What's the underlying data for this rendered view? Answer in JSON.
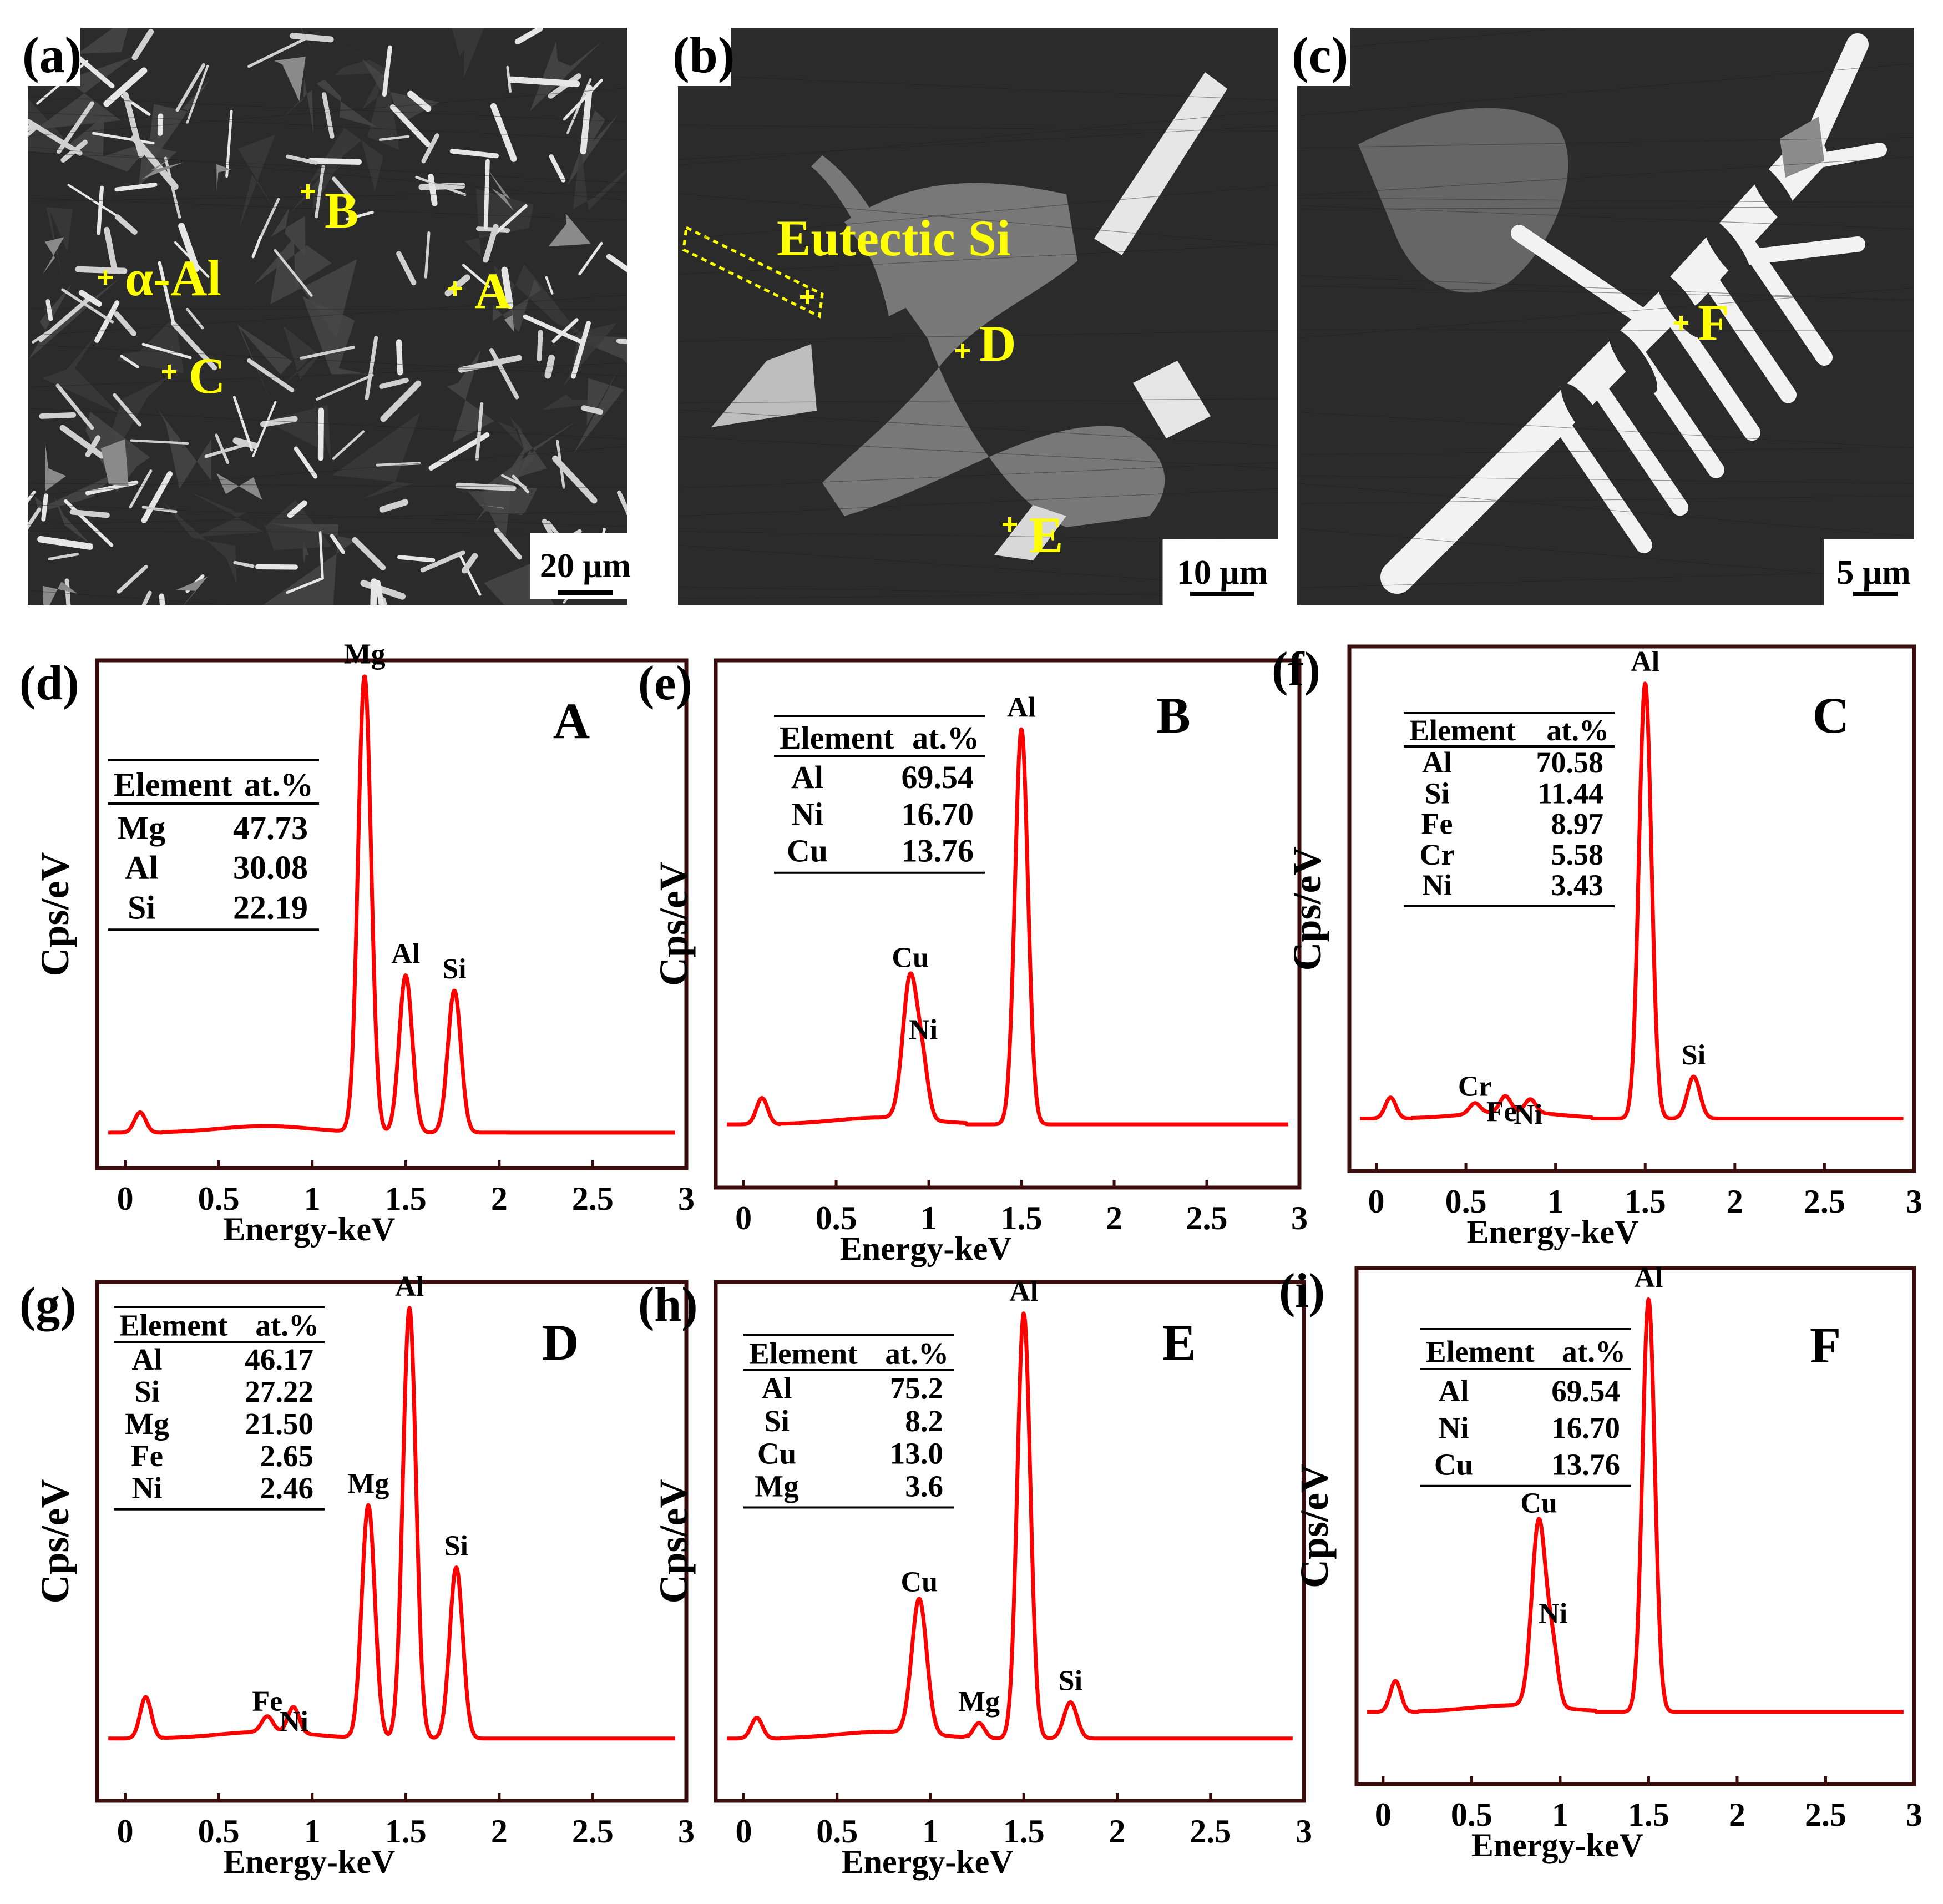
{
  "colors": {
    "spectrum": "#ff0000",
    "marker": "#ffff00",
    "frame": "#3a0c0c",
    "sem_dark": "#2b2b2b",
    "sem_mid": "#787878",
    "sem_bright": "#e6e6e6"
  },
  "micrographs": [
    {
      "panel": "(a)",
      "scale_bar": "20 μm",
      "markers": [
        {
          "label": "B"
        },
        {
          "label": "α-Al"
        },
        {
          "label": "A"
        },
        {
          "label": "C"
        }
      ]
    },
    {
      "panel": "(b)",
      "scale_bar": "10 μm",
      "markers": [
        {
          "label": "Eutectic Si"
        },
        {
          "label": "D"
        },
        {
          "label": "E"
        }
      ]
    },
    {
      "panel": "(c)",
      "scale_bar": "5 μm",
      "markers": [
        {
          "label": "F"
        }
      ]
    }
  ],
  "chart_data": [
    {
      "type": "line",
      "panel": "(d)",
      "point_label": "A",
      "xlabel": "Energy-keV",
      "ylabel": "Cps/eV",
      "xlim": [
        -0.15,
        3
      ],
      "xticks": [
        "0",
        "0.5",
        "1",
        "1.5",
        "2",
        "2.5",
        "3"
      ],
      "ylim": [
        0,
        100
      ],
      "baseline": 7,
      "peaks": [
        {
          "name": "",
          "x": 0.08,
          "h": 4,
          "w": 0.03
        },
        {
          "name": "Mg",
          "x": 1.28,
          "h": 90,
          "w": 0.035
        },
        {
          "name": "Al",
          "x": 1.5,
          "h": 31,
          "w": 0.035
        },
        {
          "name": "Si",
          "x": 1.76,
          "h": 28,
          "w": 0.035
        }
      ],
      "table": {
        "header": [
          "Element",
          "at.%"
        ],
        "rows": [
          [
            "Mg",
            "47.73"
          ],
          [
            "Al",
            "30.08"
          ],
          [
            "Si",
            "22.19"
          ]
        ]
      }
    },
    {
      "type": "line",
      "panel": "(e)",
      "point_label": "B",
      "xlabel": "Energy-keV",
      "ylabel": "Cps/eV",
      "xlim": [
        -0.15,
        3
      ],
      "xticks": [
        "0",
        "0.5",
        "1",
        "1.5",
        "2",
        "2.5",
        "3"
      ],
      "ylim": [
        0,
        100
      ],
      "baseline": 12,
      "peaks": [
        {
          "name": "",
          "x": 0.1,
          "h": 5,
          "w": 0.03
        },
        {
          "name": "Cu",
          "x": 0.9,
          "h": 27,
          "w": 0.04
        },
        {
          "name": "Ni",
          "x": 0.97,
          "h": 8,
          "w": 0.03
        },
        {
          "name": "Al",
          "x": 1.5,
          "h": 75,
          "w": 0.035
        }
      ],
      "table": {
        "header": [
          "Element",
          "at.%"
        ],
        "rows": [
          [
            "Al",
            "69.54"
          ],
          [
            "Ni",
            "16.70"
          ],
          [
            "Cu",
            "13.76"
          ]
        ]
      }
    },
    {
      "type": "line",
      "panel": "(f)",
      "point_label": "C",
      "xlabel": "Energy-keV",
      "ylabel": "Cps/eV",
      "xlim": [
        -0.15,
        3
      ],
      "xticks": [
        "0",
        "0.5",
        "1",
        "1.5",
        "2",
        "2.5",
        "3"
      ],
      "ylim": [
        0,
        100
      ],
      "baseline": 10,
      "peaks": [
        {
          "name": "",
          "x": 0.08,
          "h": 4,
          "w": 0.03
        },
        {
          "name": "Cr",
          "x": 0.55,
          "h": 2,
          "w": 0.03
        },
        {
          "name": "Fe",
          "x": 0.72,
          "h": 3,
          "w": 0.03
        },
        {
          "name": "Ni",
          "x": 0.86,
          "h": 2.5,
          "w": 0.03
        },
        {
          "name": "Al",
          "x": 1.5,
          "h": 83,
          "w": 0.035
        },
        {
          "name": "Si",
          "x": 1.77,
          "h": 8,
          "w": 0.035
        }
      ],
      "table": {
        "header": [
          "Element",
          "at.%"
        ],
        "rows": [
          [
            "Al",
            "70.58"
          ],
          [
            "Si",
            "11.44"
          ],
          [
            "Fe",
            "8.97"
          ],
          [
            "Cr",
            "5.58"
          ],
          [
            "Ni",
            "3.43"
          ]
        ]
      }
    },
    {
      "type": "line",
      "panel": "(g)",
      "point_label": "D",
      "xlabel": "Energy-keV",
      "ylabel": "Cps/eV",
      "xlim": [
        -0.15,
        3
      ],
      "xticks": [
        "0",
        "0.5",
        "1",
        "1.5",
        "2",
        "2.5",
        "3"
      ],
      "ylim": [
        0,
        100
      ],
      "baseline": 12,
      "peaks": [
        {
          "name": "",
          "x": 0.11,
          "h": 8,
          "w": 0.03
        },
        {
          "name": "Fe",
          "x": 0.76,
          "h": 3,
          "w": 0.03
        },
        {
          "name": "Ni",
          "x": 0.9,
          "h": 5,
          "w": 0.03
        },
        {
          "name": "Mg",
          "x": 1.3,
          "h": 45,
          "w": 0.035
        },
        {
          "name": "Al",
          "x": 1.52,
          "h": 83,
          "w": 0.035
        },
        {
          "name": "Si",
          "x": 1.77,
          "h": 33,
          "w": 0.035
        }
      ],
      "table": {
        "header": [
          "Element",
          "at.%"
        ],
        "rows": [
          [
            "Al",
            "46.17"
          ],
          [
            "Si",
            "27.22"
          ],
          [
            "Mg",
            "21.50"
          ],
          [
            "Fe",
            "2.65"
          ],
          [
            "Ni",
            "2.46"
          ]
        ]
      }
    },
    {
      "type": "line",
      "panel": "(h)",
      "point_label": "E",
      "xlabel": "Energy-keV",
      "ylabel": "Cps/eV",
      "xlim": [
        -0.15,
        3
      ],
      "xticks": [
        "0",
        "0.5",
        "1",
        "1.5",
        "2",
        "2.5",
        "3"
      ],
      "ylim": [
        0,
        100
      ],
      "baseline": 12,
      "peaks": [
        {
          "name": "",
          "x": 0.07,
          "h": 4,
          "w": 0.03
        },
        {
          "name": "Cu",
          "x": 0.94,
          "h": 26,
          "w": 0.04
        },
        {
          "name": "Mg",
          "x": 1.26,
          "h": 3,
          "w": 0.03
        },
        {
          "name": "Al",
          "x": 1.5,
          "h": 82,
          "w": 0.035
        },
        {
          "name": "Si",
          "x": 1.75,
          "h": 7,
          "w": 0.035
        }
      ],
      "table": {
        "header": [
          "Element",
          "at.%"
        ],
        "rows": [
          [
            "Al",
            "75.2"
          ],
          [
            "Si",
            "8.2"
          ],
          [
            "Cu",
            "13.0"
          ],
          [
            "Mg",
            "3.6"
          ]
        ]
      }
    },
    {
      "type": "line",
      "panel": "(i)",
      "point_label": "F",
      "xlabel": "Energy-keV",
      "ylabel": "Cps/eV",
      "xlim": [
        -0.15,
        3
      ],
      "xticks": [
        "0",
        "0.5",
        "1",
        "1.5",
        "2",
        "2.5",
        "3"
      ],
      "ylim": [
        0,
        100
      ],
      "baseline": 14,
      "peaks": [
        {
          "name": "",
          "x": 0.07,
          "h": 6,
          "w": 0.03
        },
        {
          "name": "Cu",
          "x": 0.88,
          "h": 36,
          "w": 0.04
        },
        {
          "name": "Ni",
          "x": 0.96,
          "h": 10,
          "w": 0.03
        },
        {
          "name": "Al",
          "x": 1.5,
          "h": 80,
          "w": 0.035
        }
      ],
      "table": {
        "header": [
          "Element",
          "at.%"
        ],
        "rows": [
          [
            "Al",
            "69.54"
          ],
          [
            "Ni",
            "16.70"
          ],
          [
            "Cu",
            "13.76"
          ]
        ]
      }
    }
  ]
}
